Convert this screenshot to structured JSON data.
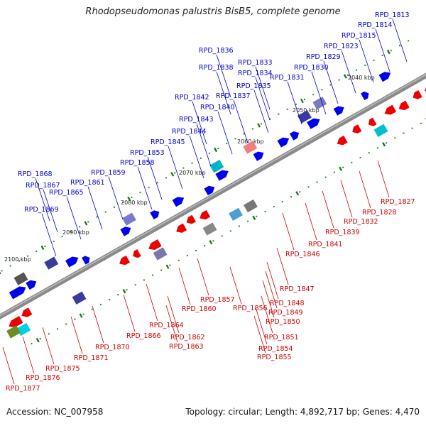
{
  "title": "Rhodopseudomonas palustris BisB5, complete genome",
  "footer": {
    "accession": "Accession: NC_007958",
    "topology": "Topology: circular; Length: 4,892,717 bp; Genes: 4,470"
  },
  "colors": {
    "forward_gene": "#0000ee",
    "reverse_gene": "#ee0000",
    "backbone": "#8a8a8a",
    "tick": "#2a8a2a",
    "forward_label": "#0000cc",
    "reverse_label": "#cc0000"
  },
  "scale_labels": [
    "2040 kbp",
    "2050 kbp",
    "2060 kbp",
    "2070 kbp",
    "2080 kbp",
    "2090 kbp",
    "2100 kbp"
  ],
  "forward_labels": [
    "RPD_1813",
    "RPD_1814",
    "RPD_1815",
    "RPD_1823",
    "RPD_1829",
    "RPD_1830",
    "RPD_1831",
    "RPD_1833",
    "RPD_1834",
    "RPD_1835",
    "RPD_1836",
    "RPD_1837",
    "RPD_1838",
    "RPD_1840",
    "RPD_1842",
    "RPD_1843",
    "RPD_1844",
    "RPD_1845",
    "RPD_1853",
    "RPD_1858",
    "RPD_1859",
    "RPD_1861",
    "RPD_1865",
    "RPD_1867",
    "RPD_1868",
    "RPD_1869"
  ],
  "reverse_labels": [
    "RPD_1827",
    "RPD_1828",
    "RPD_1832",
    "RPD_1839",
    "RPD_1841",
    "RPD_1846",
    "RPD_1847",
    "RPD_1848",
    "RPD_1849",
    "RPD_1850",
    "RPD_1851",
    "RPD_1854",
    "RPD_1855",
    "RPD_1856",
    "RPD_1857",
    "RPD_1860",
    "RPD_1862",
    "RPD_1863",
    "RPD_1864",
    "RPD_1866",
    "RPD_1870",
    "RPD_1871",
    "RPD_1875",
    "RPD_1876",
    "RPD_1877"
  ]
}
